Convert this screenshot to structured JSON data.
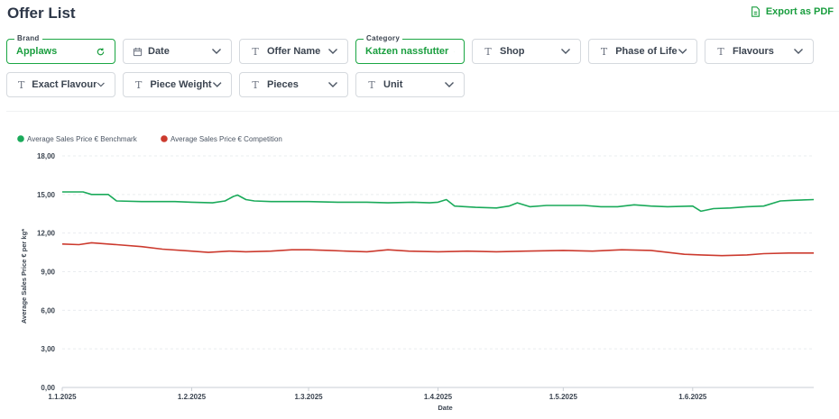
{
  "header": {
    "title": "Offer List",
    "export_label": "Export as PDF"
  },
  "filters": [
    {
      "id": "brand",
      "float_label": "Brand",
      "label": "Applaws",
      "icon": "none",
      "active": true,
      "action": "reset-icon"
    },
    {
      "id": "date",
      "label": "Date",
      "icon": "calendar-icon",
      "active": false
    },
    {
      "id": "offer-name",
      "label": "Offer Name",
      "icon": "text-icon",
      "active": false
    },
    {
      "id": "category",
      "float_label": "Category",
      "label": "Katzen nassfutter",
      "icon": "none",
      "active": true,
      "action": "clear-icon"
    },
    {
      "id": "shop",
      "label": "Shop",
      "icon": "text-icon",
      "active": false
    },
    {
      "id": "phase-of-life",
      "label": "Phase of Life",
      "icon": "text-icon",
      "active": false
    },
    {
      "id": "flavours",
      "label": "Flavours",
      "icon": "text-icon",
      "active": false
    },
    {
      "id": "exact-flavour",
      "label": "Exact Flavour",
      "icon": "text-icon",
      "active": false
    },
    {
      "id": "piece-weight",
      "label": "Piece Weight",
      "icon": "text-icon",
      "active": false
    },
    {
      "id": "pieces",
      "label": "Pieces",
      "icon": "text-icon",
      "active": false
    },
    {
      "id": "unit",
      "label": "Unit",
      "icon": "text-icon",
      "active": false
    }
  ],
  "chart_data": {
    "type": "line",
    "xlabel": "Date",
    "ylabel": "Average Sales Price € per kg*",
    "ylim": [
      0,
      18
    ],
    "y_ticks": [
      "0,00",
      "3,00",
      "6,00",
      "9,00",
      "12,00",
      "15,00",
      "18,00"
    ],
    "x_range": [
      "2025-01-01",
      "2025-06-30"
    ],
    "x_ticks": [
      {
        "date": "2025-01-01",
        "label": "1.1.2025"
      },
      {
        "date": "2025-02-01",
        "label": "1.2.2025"
      },
      {
        "date": "2025-03-01",
        "label": "1.3.2025"
      },
      {
        "date": "2025-04-01",
        "label": "1.4.2025"
      },
      {
        "date": "2025-05-01",
        "label": "1.5.2025"
      },
      {
        "date": "2025-06-01",
        "label": "1.6.2025"
      }
    ],
    "grid": true,
    "legend_position": "top-left",
    "series": [
      {
        "name": "Average Sales Price € Benchmark",
        "color": "#1aaa5a",
        "points": [
          [
            "2025-01-01",
            15.2
          ],
          [
            "2025-01-06",
            15.2
          ],
          [
            "2025-01-08",
            15.0
          ],
          [
            "2025-01-12",
            15.0
          ],
          [
            "2025-01-14",
            14.5
          ],
          [
            "2025-01-20",
            14.45
          ],
          [
            "2025-01-28",
            14.45
          ],
          [
            "2025-02-01",
            14.4
          ],
          [
            "2025-02-06",
            14.35
          ],
          [
            "2025-02-09",
            14.5
          ],
          [
            "2025-02-11",
            14.85
          ],
          [
            "2025-02-12",
            14.95
          ],
          [
            "2025-02-14",
            14.6
          ],
          [
            "2025-02-16",
            14.5
          ],
          [
            "2025-02-20",
            14.45
          ],
          [
            "2025-03-01",
            14.45
          ],
          [
            "2025-03-08",
            14.4
          ],
          [
            "2025-03-15",
            14.4
          ],
          [
            "2025-03-20",
            14.35
          ],
          [
            "2025-03-26",
            14.4
          ],
          [
            "2025-03-30",
            14.35
          ],
          [
            "2025-04-01",
            14.4
          ],
          [
            "2025-04-03",
            14.6
          ],
          [
            "2025-04-05",
            14.1
          ],
          [
            "2025-04-10",
            14.0
          ],
          [
            "2025-04-15",
            13.95
          ],
          [
            "2025-04-18",
            14.1
          ],
          [
            "2025-04-20",
            14.35
          ],
          [
            "2025-04-23",
            14.05
          ],
          [
            "2025-04-27",
            14.15
          ],
          [
            "2025-05-01",
            14.15
          ],
          [
            "2025-05-06",
            14.15
          ],
          [
            "2025-05-10",
            14.05
          ],
          [
            "2025-05-14",
            14.05
          ],
          [
            "2025-05-18",
            14.2
          ],
          [
            "2025-05-22",
            14.1
          ],
          [
            "2025-05-26",
            14.05
          ],
          [
            "2025-06-01",
            14.1
          ],
          [
            "2025-06-03",
            13.7
          ],
          [
            "2025-06-06",
            13.9
          ],
          [
            "2025-06-10",
            13.95
          ],
          [
            "2025-06-14",
            14.05
          ],
          [
            "2025-06-18",
            14.1
          ],
          [
            "2025-06-22",
            14.5
          ],
          [
            "2025-06-25",
            14.55
          ],
          [
            "2025-06-30",
            14.6
          ]
        ]
      },
      {
        "name": "Average Sales Price € Competition",
        "color": "#cc3a2e",
        "points": [
          [
            "2025-01-01",
            11.15
          ],
          [
            "2025-01-05",
            11.1
          ],
          [
            "2025-01-08",
            11.25
          ],
          [
            "2025-01-14",
            11.1
          ],
          [
            "2025-01-20",
            10.95
          ],
          [
            "2025-01-25",
            10.75
          ],
          [
            "2025-02-01",
            10.6
          ],
          [
            "2025-02-05",
            10.5
          ],
          [
            "2025-02-10",
            10.6
          ],
          [
            "2025-02-14",
            10.55
          ],
          [
            "2025-02-20",
            10.6
          ],
          [
            "2025-02-25",
            10.7
          ],
          [
            "2025-03-01",
            10.7
          ],
          [
            "2025-03-06",
            10.65
          ],
          [
            "2025-03-10",
            10.6
          ],
          [
            "2025-03-15",
            10.55
          ],
          [
            "2025-03-20",
            10.7
          ],
          [
            "2025-03-25",
            10.6
          ],
          [
            "2025-04-01",
            10.55
          ],
          [
            "2025-04-08",
            10.6
          ],
          [
            "2025-04-15",
            10.55
          ],
          [
            "2025-04-22",
            10.6
          ],
          [
            "2025-05-01",
            10.65
          ],
          [
            "2025-05-08",
            10.6
          ],
          [
            "2025-05-15",
            10.7
          ],
          [
            "2025-05-22",
            10.65
          ],
          [
            "2025-05-26",
            10.5
          ],
          [
            "2025-05-30",
            10.35
          ],
          [
            "2025-06-03",
            10.3
          ],
          [
            "2025-06-08",
            10.25
          ],
          [
            "2025-06-14",
            10.3
          ],
          [
            "2025-06-18",
            10.4
          ],
          [
            "2025-06-24",
            10.45
          ],
          [
            "2025-06-30",
            10.45
          ]
        ]
      }
    ]
  }
}
